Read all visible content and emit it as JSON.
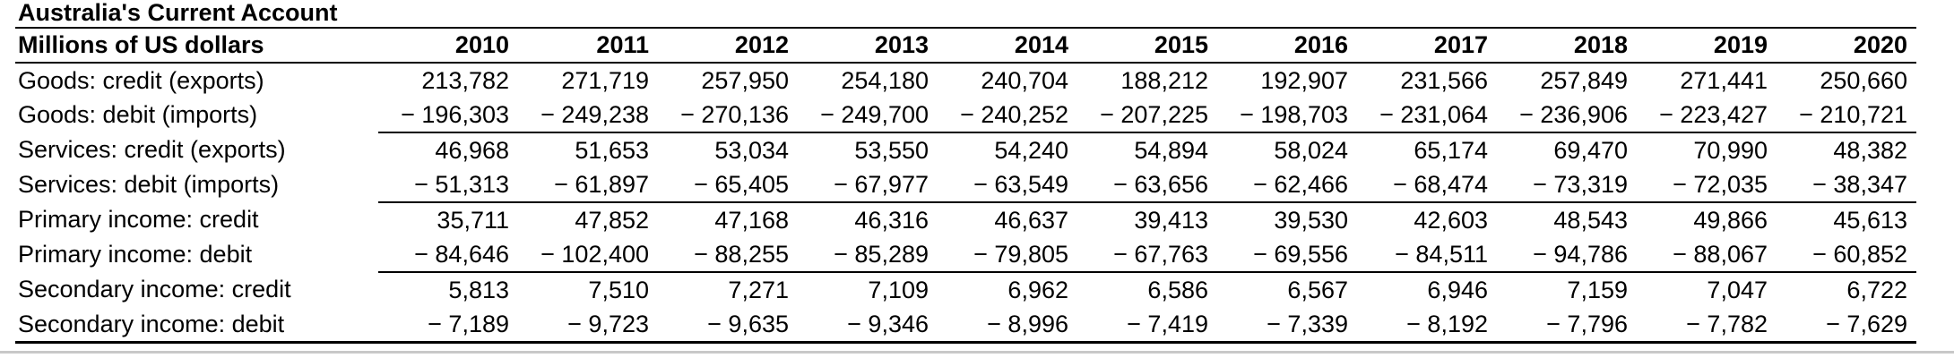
{
  "title": "Australia's Current Account",
  "table": {
    "unit_label": "Millions of US dollars",
    "years": [
      "2010",
      "2011",
      "2012",
      "2013",
      "2014",
      "2015",
      "2016",
      "2017",
      "2018",
      "2019",
      "2020"
    ],
    "rows": [
      {
        "label": "Goods: credit (exports)",
        "values": [
          "213,782",
          "271,719",
          "257,950",
          "254,180",
          "240,704",
          "188,212",
          "192,907",
          "231,566",
          "257,849",
          "271,441",
          "250,660"
        ],
        "sum_line": false
      },
      {
        "label": "Goods: debit (imports)",
        "values": [
          "− 196,303",
          "− 249,238",
          "− 270,136",
          "− 249,700",
          "− 240,252",
          "− 207,225",
          "− 198,703",
          "− 231,064",
          "− 236,906",
          "− 223,427",
          "− 210,721"
        ],
        "sum_line": true
      },
      {
        "label": "Services: credit (exports)",
        "values": [
          "46,968",
          "51,653",
          "53,034",
          "53,550",
          "54,240",
          "54,894",
          "58,024",
          "65,174",
          "69,470",
          "70,990",
          "48,382"
        ],
        "sum_line": false
      },
      {
        "label": "Services: debit (imports)",
        "values": [
          "− 51,313",
          "− 61,897",
          "− 65,405",
          "− 67,977",
          "− 63,549",
          "− 63,656",
          "− 62,466",
          "− 68,474",
          "− 73,319",
          "− 72,035",
          "− 38,347"
        ],
        "sum_line": true
      },
      {
        "label": "Primary income: credit",
        "values": [
          "35,711",
          "47,852",
          "47,168",
          "46,316",
          "46,637",
          "39,413",
          "39,530",
          "42,603",
          "48,543",
          "49,866",
          "45,613"
        ],
        "sum_line": false
      },
      {
        "label": "Primary income: debit",
        "values": [
          "− 84,646",
          "− 102,400",
          "− 88,255",
          "− 85,289",
          "− 79,805",
          "− 67,763",
          "− 69,556",
          "− 84,511",
          "− 94,786",
          "− 88,067",
          "− 60,852"
        ],
        "sum_line": true
      },
      {
        "label": "Secondary income: credit",
        "values": [
          "5,813",
          "7,510",
          "7,271",
          "7,109",
          "6,962",
          "6,586",
          "6,567",
          "6,946",
          "7,159",
          "7,047",
          "6,722"
        ],
        "sum_line": false
      },
      {
        "label": "Secondary income: debit",
        "values": [
          "− 7,189",
          "− 9,723",
          "− 9,635",
          "− 9,346",
          "− 8,996",
          "− 7,419",
          "− 7,339",
          "− 8,192",
          "− 7,796",
          "− 7,782",
          "− 7,629"
        ],
        "sum_line": false
      }
    ]
  }
}
